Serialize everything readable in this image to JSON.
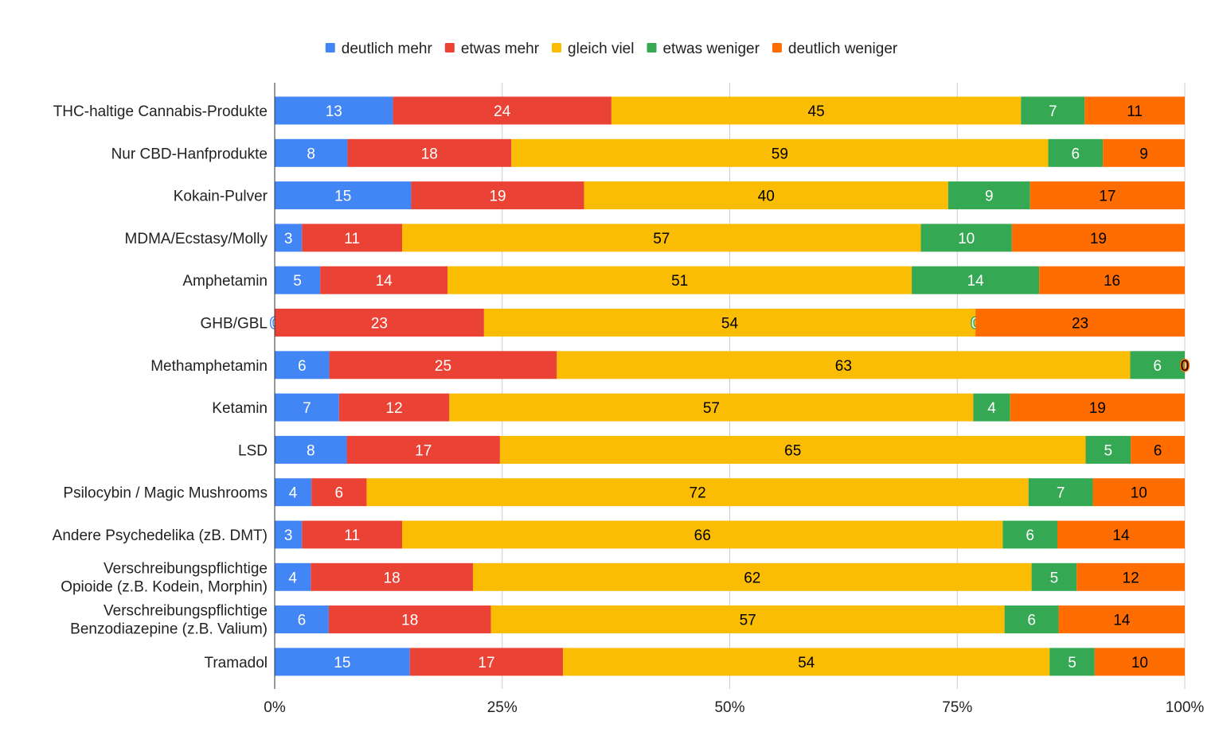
{
  "chart_data": {
    "type": "bar",
    "orientation": "horizontal",
    "stacked": "percent",
    "title": "",
    "xlabel": "",
    "ylabel": "",
    "xlim": [
      0,
      100
    ],
    "grid": true,
    "legend_position": "top-center",
    "x_ticks": [
      "0%",
      "25%",
      "50%",
      "75%",
      "100%"
    ],
    "categories": [
      [
        "THC-haltige Cannabis-Produkte"
      ],
      [
        "Nur CBD-Hanfprodukte"
      ],
      [
        "Kokain-Pulver"
      ],
      [
        "MDMA/Ecstasy/Molly"
      ],
      [
        "Amphetamin"
      ],
      [
        "GHB/GBL"
      ],
      [
        "Methamphetamin"
      ],
      [
        "Ketamin"
      ],
      [
        "LSD"
      ],
      [
        "Psilocybin / Magic Mushrooms"
      ],
      [
        "Andere Psychedelika (zB. DMT)"
      ],
      [
        "Verschreibungspflichtige",
        "Opioide (z.B. Kodein, Morphin)"
      ],
      [
        "Verschreibungspflichtige",
        "Benzodiazepine (z.B. Valium)"
      ],
      [
        "Tramadol"
      ]
    ],
    "series": [
      {
        "name": "deutlich mehr",
        "color": "#4285f4",
        "label_color": "#ffffff",
        "values": [
          13,
          8,
          15,
          3,
          5,
          0,
          6,
          7,
          8,
          4,
          3,
          4,
          6,
          15
        ]
      },
      {
        "name": "etwas mehr",
        "color": "#ea4335",
        "label_color": "#ffffff",
        "values": [
          24,
          18,
          19,
          11,
          14,
          23,
          25,
          12,
          17,
          6,
          11,
          18,
          18,
          17
        ]
      },
      {
        "name": "gleich viel",
        "color": "#fbbc04",
        "label_color": "#000000",
        "values": [
          45,
          59,
          40,
          57,
          51,
          54,
          63,
          57,
          65,
          72,
          66,
          62,
          57,
          54
        ]
      },
      {
        "name": "etwas weniger",
        "color": "#34a853",
        "label_color": "#ffffff",
        "values": [
          7,
          6,
          9,
          10,
          14,
          0,
          6,
          4,
          5,
          7,
          6,
          5,
          6,
          5
        ]
      },
      {
        "name": "deutlich weniger",
        "color": "#ff6d01",
        "label_color": "#000000",
        "values": [
          11,
          9,
          17,
          19,
          16,
          23,
          0,
          19,
          6,
          10,
          14,
          12,
          14,
          10
        ]
      }
    ]
  }
}
